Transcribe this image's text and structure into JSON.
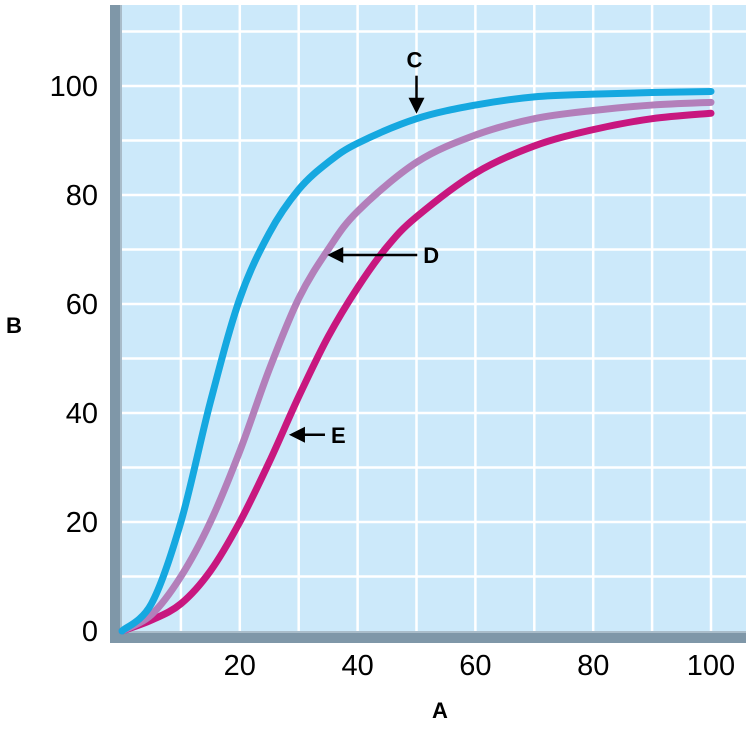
{
  "chart_data": {
    "type": "line",
    "title": "",
    "xlabel": "A",
    "ylabel": "B",
    "xlim": [
      0,
      105
    ],
    "ylim": [
      0,
      112
    ],
    "xticks": [
      20,
      40,
      60,
      80,
      100
    ],
    "yticks": [
      0,
      20,
      40,
      60,
      80,
      100
    ],
    "x_tick_labels": [
      "20",
      "40",
      "60",
      "80",
      "100"
    ],
    "y_tick_labels": [
      "0",
      "20",
      "40",
      "60",
      "80",
      "100"
    ],
    "grid": true,
    "legend": "none",
    "background_color": "#cce9fa",
    "grid_color": "#ffffff",
    "axis_color": "#7f97a8",
    "series": [
      {
        "label": "C",
        "color": "#15a8e0",
        "x": [
          0,
          5,
          10,
          15,
          20,
          25,
          30,
          35,
          40,
          50,
          60,
          70,
          80,
          90,
          100
        ],
        "y": [
          0,
          5,
          20,
          42,
          61,
          73,
          81,
          86,
          89.5,
          94,
          96.5,
          98,
          98.5,
          98.8,
          99
        ]
      },
      {
        "label": "D",
        "color": "#b37fba",
        "x": [
          0,
          5,
          10,
          15,
          20,
          25,
          30,
          35,
          40,
          50,
          60,
          70,
          80,
          90,
          100
        ],
        "y": [
          0,
          3,
          10,
          20,
          33,
          48,
          61,
          70,
          77,
          86,
          91,
          94,
          95.5,
          96.5,
          97
        ]
      },
      {
        "label": "E",
        "color": "#c8177f",
        "x": [
          0,
          5,
          10,
          15,
          20,
          25,
          30,
          35,
          40,
          45,
          50,
          60,
          70,
          80,
          90,
          100
        ],
        "y": [
          0,
          2,
          5,
          11,
          20,
          31,
          43,
          54,
          63,
          70.5,
          76,
          84,
          89,
          92,
          94,
          95
        ]
      }
    ],
    "annotations": [
      {
        "text": "C",
        "arrow": "down",
        "points_to": {
          "x": 50,
          "y": 94
        }
      },
      {
        "text": "D",
        "arrow": "left",
        "points_to": {
          "x": 34,
          "y": 69
        }
      },
      {
        "text": "E",
        "arrow": "left",
        "points_to": {
          "x": 27.5,
          "y": 36
        }
      }
    ]
  }
}
